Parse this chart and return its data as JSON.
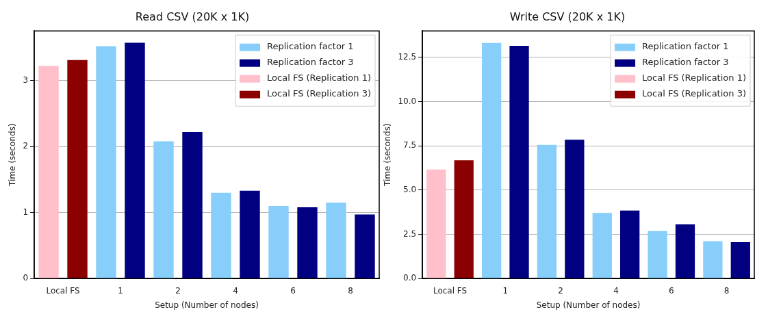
{
  "chart_data": [
    {
      "type": "bar",
      "title": "Read CSV (20K x 1K)",
      "xlabel": "Setup (Number of nodes)",
      "ylabel": "Time (seconds)",
      "categories": [
        "Local FS",
        "1",
        "2",
        "4",
        "6",
        "8"
      ],
      "series": [
        {
          "name": "Replication factor 1",
          "color": "#87cefa",
          "values": [
            null,
            3.52,
            2.08,
            1.3,
            1.1,
            1.15
          ]
        },
        {
          "name": "Replication factor 3",
          "color": "#000080",
          "values": [
            null,
            3.57,
            2.22,
            1.33,
            1.08,
            0.97
          ]
        },
        {
          "name": "Local FS (Replication 1)",
          "color": "#ffc0cb",
          "values": [
            3.22,
            null,
            null,
            null,
            null,
            null
          ]
        },
        {
          "name": "Local FS (Replication 3)",
          "color": "#8b0000",
          "values": [
            3.31,
            null,
            null,
            null,
            null,
            null
          ]
        }
      ],
      "ylim": [
        0,
        3.75
      ],
      "yticks": [
        0,
        1,
        2,
        3
      ],
      "grid": "y",
      "legend": "top right"
    },
    {
      "type": "bar",
      "title": "Write CSV (20K x 1K)",
      "xlabel": "Setup (Number of nodes)",
      "ylabel": "Time (seconds)",
      "categories": [
        "Local FS",
        "1",
        "2",
        "4",
        "6",
        "8"
      ],
      "series": [
        {
          "name": "Replication factor 1",
          "color": "#87cefa",
          "values": [
            null,
            13.32,
            7.56,
            3.71,
            2.69,
            2.12
          ]
        },
        {
          "name": "Replication factor 3",
          "color": "#000080",
          "values": [
            null,
            13.16,
            7.85,
            3.85,
            3.06,
            2.06
          ]
        },
        {
          "name": "Local FS (Replication 1)",
          "color": "#ffc0cb",
          "values": [
            6.17,
            null,
            null,
            null,
            null,
            null
          ]
        },
        {
          "name": "Local FS (Replication 3)",
          "color": "#8b0000",
          "values": [
            6.69,
            null,
            null,
            null,
            null,
            null
          ]
        }
      ],
      "ylim": [
        0,
        14.0
      ],
      "yticks": [
        {
          "value": 0,
          "label": "0.0"
        },
        {
          "value": 2.5,
          "label": "2.5"
        },
        {
          "value": 5,
          "label": "5.0"
        },
        {
          "value": 7.5,
          "label": "7.5"
        },
        {
          "value": 10,
          "label": "10.0"
        },
        {
          "value": 12.5,
          "label": "12.5"
        }
      ],
      "grid": "y",
      "legend": "top right"
    }
  ]
}
